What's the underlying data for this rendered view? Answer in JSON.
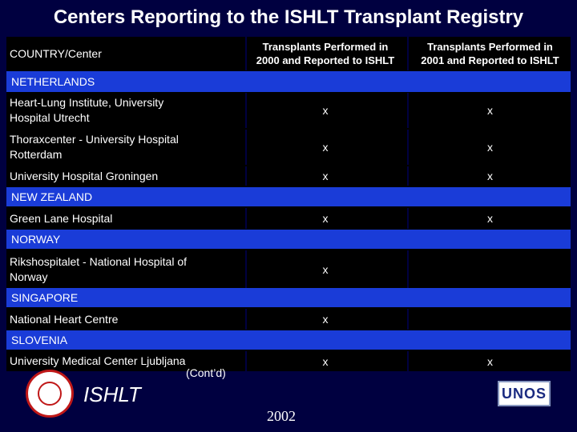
{
  "title": "Centers Reporting to the ISHLT Transplant Registry",
  "header": {
    "country_center": "COUNTRY/Center",
    "col_2000_line1": "Transplants Performed in",
    "col_2000_line2": "2000 and Reported to ISHLT",
    "col_2001_line1": "Transplants Performed in",
    "col_2001_line2": "2001 and Reported to ISHLT"
  },
  "groups": [
    {
      "country": "NETHERLANDS",
      "centers": [
        {
          "line1": "Heart-Lung Institute, University",
          "line2": "Hospital Utrecht",
          "y2000": "x",
          "y2001": "x"
        },
        {
          "line1": "Thoraxcenter - University Hospital",
          "line2": "Rotterdam",
          "y2000": "x",
          "y2001": "x"
        },
        {
          "line1": "University Hospital Groningen",
          "line2": "",
          "y2000": "x",
          "y2001": "x"
        }
      ]
    },
    {
      "country": "NEW ZEALAND",
      "centers": [
        {
          "line1": "Green Lane Hospital",
          "line2": "",
          "y2000": "x",
          "y2001": "x"
        }
      ]
    },
    {
      "country": "NORWAY",
      "centers": [
        {
          "line1": "Rikshospitalet - National Hospital of",
          "line2": "Norway",
          "y2000": "x",
          "y2001": ""
        }
      ]
    },
    {
      "country": "SINGAPORE",
      "centers": [
        {
          "line1": "National Heart Centre",
          "line2": "",
          "y2000": "x",
          "y2001": ""
        }
      ]
    },
    {
      "country": "SLOVENIA",
      "centers": [
        {
          "line1": "University Medical Center Ljubljana",
          "line2": "",
          "y2000": "x",
          "y2001": "x"
        }
      ]
    }
  ],
  "footer": {
    "contd": "(Cont’d)",
    "logo_text": "ISHLT",
    "year": "2002",
    "unos_logo": "UNOS"
  },
  "colors": {
    "background": "#000040",
    "country_band": "#1a3cd8",
    "table_bg": "#000000"
  }
}
